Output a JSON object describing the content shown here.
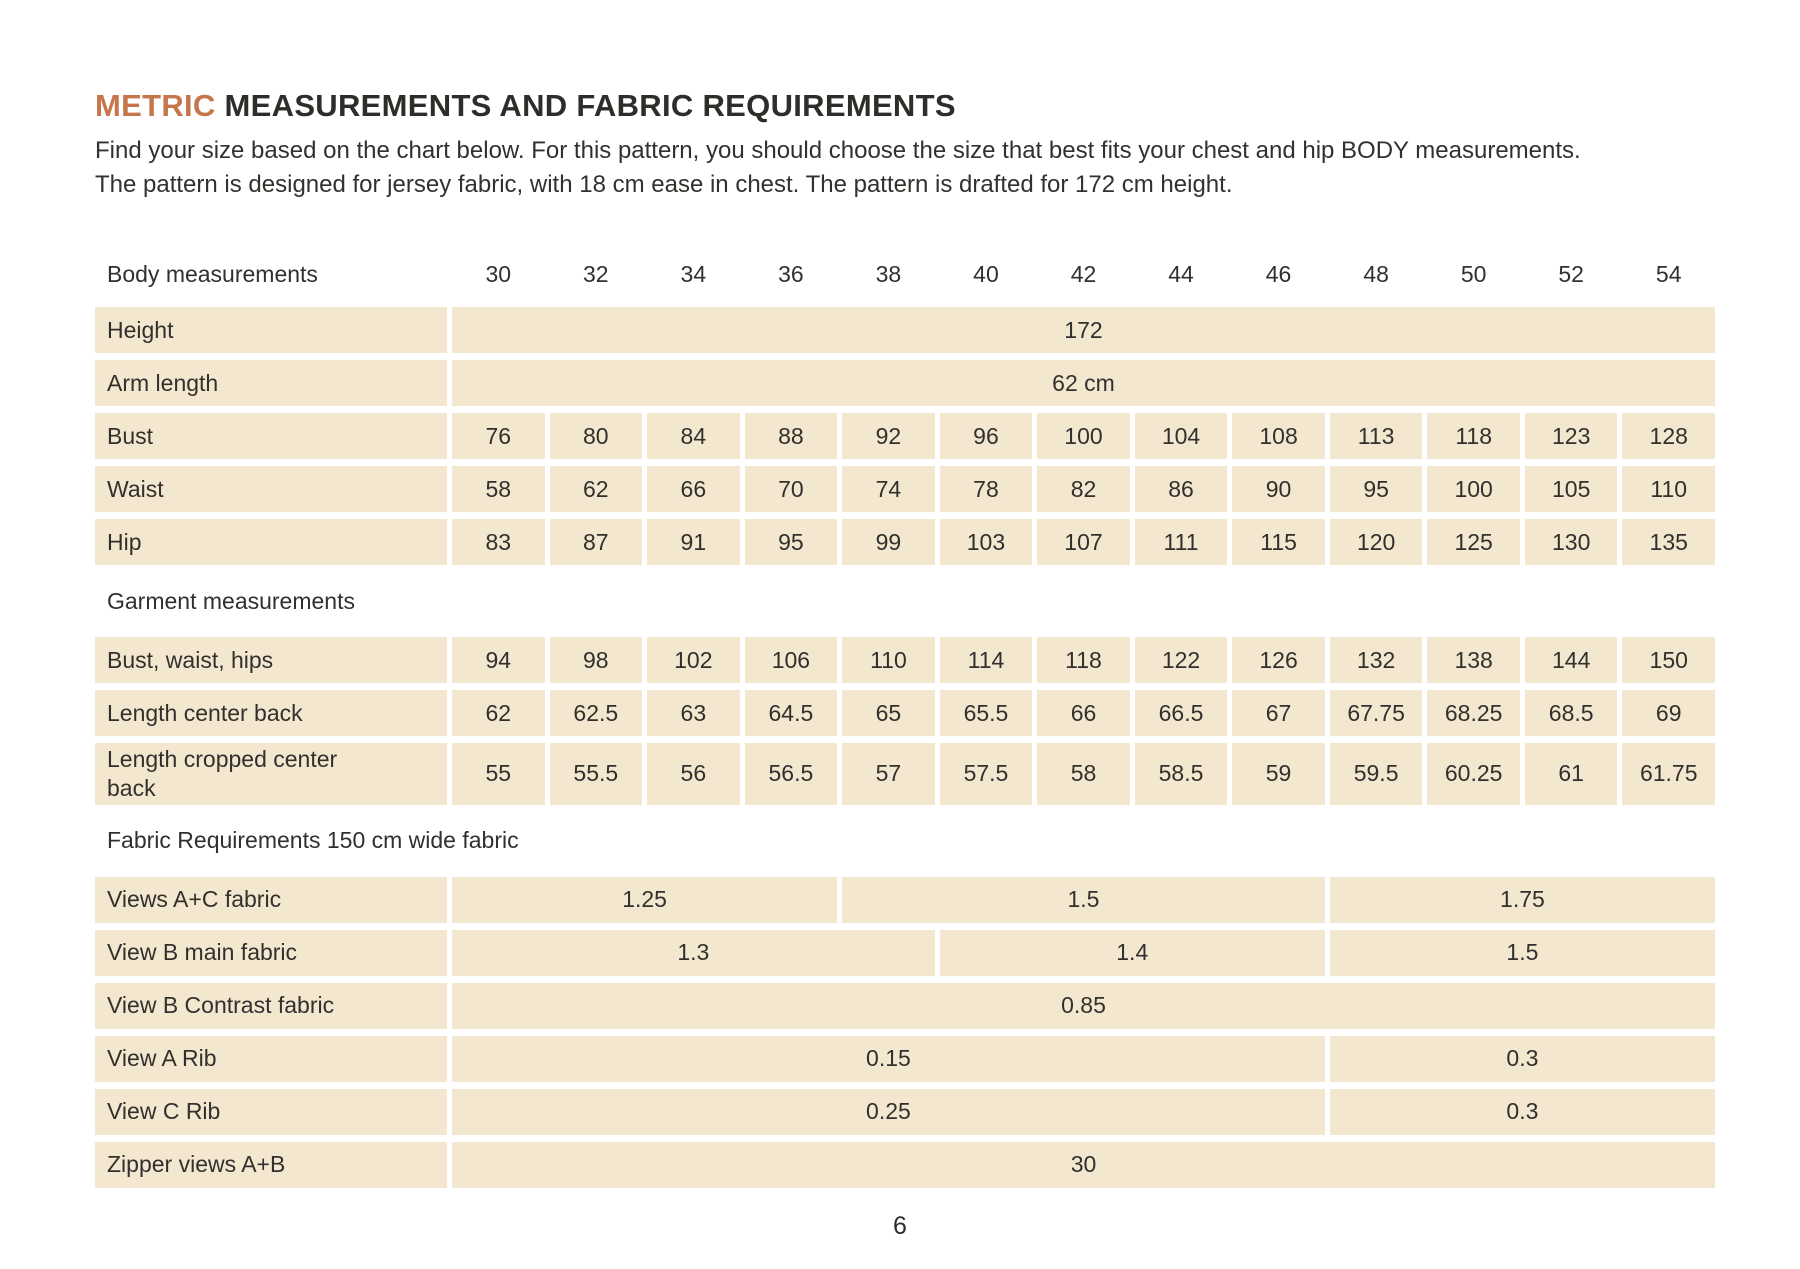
{
  "page": {
    "title_accent": "METRIC",
    "title_rest": " MEASUREMENTS AND FABRIC REQUIREMENTS",
    "intro": "Find your size based on the chart below. For this pattern, you should choose the size that best fits your chest and hip BODY measurements. The pattern is designed for jersey fabric, with 18 cm ease in chest. The pattern is drafted for 172 cm height.",
    "page_number": "6"
  },
  "colors": {
    "accent": "#c5764b",
    "cell_background": "#f4e7d0",
    "text": "#32302c"
  },
  "table": {
    "sizes_header_label": "Body measurements",
    "sizes": [
      "30",
      "32",
      "34",
      "36",
      "38",
      "40",
      "42",
      "44",
      "46",
      "48",
      "50",
      "52",
      "54"
    ],
    "rows": [
      {
        "label": "Height",
        "cells": [
          {
            "v": "172",
            "span": 13
          }
        ]
      },
      {
        "label": "Arm length",
        "cells": [
          {
            "v": "62 cm",
            "span": 13
          }
        ]
      },
      {
        "label": "Bust",
        "values": [
          "76",
          "80",
          "84",
          "88",
          "92",
          "96",
          "100",
          "104",
          "108",
          "113",
          "118",
          "123",
          "128"
        ]
      },
      {
        "label": "Waist",
        "values": [
          "58",
          "62",
          "66",
          "70",
          "74",
          "78",
          "82",
          "86",
          "90",
          "95",
          "100",
          "105",
          "110"
        ]
      },
      {
        "label": "Hip",
        "values": [
          "83",
          "87",
          "91",
          "95",
          "99",
          "103",
          "107",
          "111",
          "115",
          "120",
          "125",
          "130",
          "135"
        ]
      },
      {
        "section": "Garment measurements"
      },
      {
        "label": "Bust, waist, hips",
        "values": [
          "94",
          "98",
          "102",
          "106",
          "110",
          "114",
          "118",
          "122",
          "126",
          "132",
          "138",
          "144",
          "150"
        ]
      },
      {
        "label": "Length center back",
        "values": [
          "62",
          "62.5",
          "63",
          "64.5",
          "65",
          "65.5",
          "66",
          "66.5",
          "67",
          "67.75",
          "68.25",
          "68.5",
          "69"
        ]
      },
      {
        "label": "Length cropped center back",
        "values": [
          "55",
          "55.5",
          "56",
          "56.5",
          "57",
          "57.5",
          "58",
          "58.5",
          "59",
          "59.5",
          "60.25",
          "61",
          "61.75"
        ]
      },
      {
        "section": "Fabric Requirements 150 cm wide fabric"
      },
      {
        "label": "Views A+C fabric",
        "cells": [
          {
            "v": "1.25",
            "span": 4
          },
          {
            "v": "1.5",
            "span": 5
          },
          {
            "v": "1.75",
            "span": 4
          }
        ]
      },
      {
        "label": "View B main fabric",
        "cells": [
          {
            "v": "1.3",
            "span": 5
          },
          {
            "v": "1.4",
            "span": 4
          },
          {
            "v": "1.5",
            "span": 4
          }
        ]
      },
      {
        "label": "View B Contrast fabric",
        "cells": [
          {
            "v": "0.85",
            "span": 13
          }
        ]
      },
      {
        "label": "View A  Rib",
        "cells": [
          {
            "v": "0.15",
            "span": 9
          },
          {
            "v": "0.3",
            "span": 4
          }
        ]
      },
      {
        "label": "View C Rib",
        "cells": [
          {
            "v": "0.25",
            "span": 9
          },
          {
            "v": "0.3",
            "span": 4
          }
        ]
      },
      {
        "label": "Zipper views A+B",
        "cells": [
          {
            "v": "30",
            "span": 13
          }
        ]
      }
    ]
  }
}
